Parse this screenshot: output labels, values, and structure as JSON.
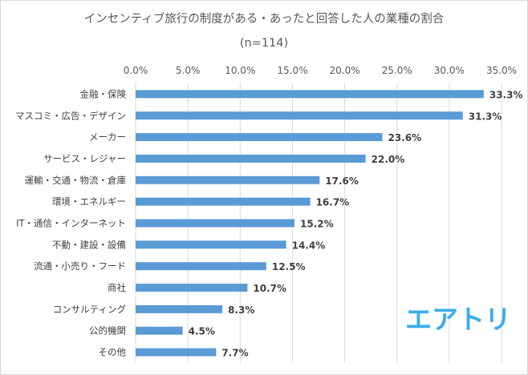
{
  "chart_data": {
    "type": "bar",
    "orientation": "horizontal",
    "title": "インセンティブ旅行の制度がある・あったと回答した人の業種の割合",
    "subtitle": "(n=114)",
    "categories": [
      "金融・保険",
      "マスコミ・広告・デザイン",
      "メーカー",
      "サービス・レジャー",
      "運輸・交通・物流・倉庫",
      "環境・エネルギー",
      "IT・通信・インターネット",
      "不動・建設・設備",
      "流通・小売り・フード",
      "商社",
      "コンサルティング",
      "公的機関",
      "その他"
    ],
    "values": [
      33.3,
      31.3,
      23.6,
      22.0,
      17.6,
      16.7,
      15.2,
      14.4,
      12.5,
      10.7,
      8.3,
      4.5,
      7.7
    ],
    "value_labels": [
      "33.3%",
      "31.3%",
      "23.6%",
      "22.0%",
      "17.6%",
      "16.7%",
      "15.2%",
      "14.4%",
      "12.5%",
      "10.7%",
      "8.3%",
      "4.5%",
      "7.7%"
    ],
    "xlim": [
      0,
      35
    ],
    "x_ticks": [
      "0.0%",
      "5.0%",
      "10.0%",
      "15.0%",
      "20.0%",
      "25.0%",
      "30.0%",
      "35.0%"
    ],
    "x_axis_position": "top",
    "grid": true,
    "bar_color": "#5b9bd5",
    "grid_color": "#d9d9d9"
  },
  "logo": {
    "text": "エアトリ",
    "color": "#3aaee8"
  }
}
